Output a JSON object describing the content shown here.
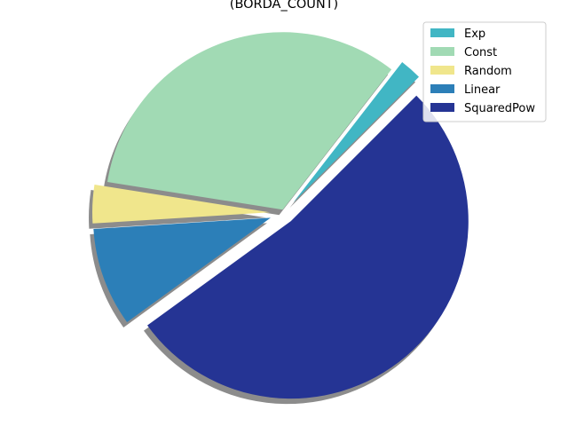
{
  "chart_data": {
    "type": "pie",
    "title": "(BORDA_COUNT)",
    "categories": [
      "Exp",
      "Const",
      "Random",
      "Linear",
      "SquaredPow"
    ],
    "values": [
      2,
      33,
      3.5,
      9,
      52.5
    ],
    "colors": [
      "#41b6c4",
      "#a1dab4",
      "#f0e68c",
      "#2c7fb8",
      "#253494"
    ],
    "explode": [
      0.08,
      0.02,
      0.08,
      0.08,
      0.06
    ],
    "start_angle_deg": 45,
    "shadow": true,
    "legend_position": "top-right"
  }
}
